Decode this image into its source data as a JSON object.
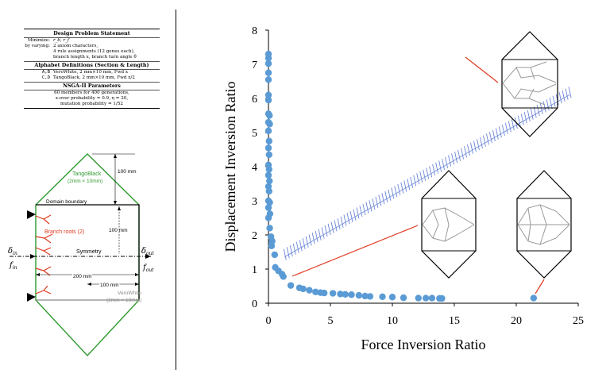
{
  "table": {
    "design_problem": {
      "title": "Design Problem Statement",
      "minimize_key": "Minimize:",
      "minimize_val": "r_δ, r_f",
      "varying_key": "by varying:",
      "varying_lines": [
        "2 axiom characters,",
        "4 rule assignments (12 genes each),",
        "branch length x, branch turn angle θ"
      ]
    },
    "alphabet": {
      "title": "Alphabet Definitions (Section & Length)",
      "rows": [
        {
          "key": "A,B",
          "val": "VeroWhite, 2 mm×10 mm, Fwd x"
        },
        {
          "key": "C,D",
          "val": "TangoBlack, 2 mm×10 mm, Fwd x/2"
        }
      ]
    },
    "nsga": {
      "title": "NSGA-II Parameters",
      "lines": [
        "60 members for 400 generations,",
        "x-over probability = 0.9, η = 20,",
        "mutation probability = 1/52"
      ]
    }
  },
  "schematic": {
    "tango_label_1": "TangoBlack",
    "tango_label_2": "(2mm × 10mm)",
    "dim_100_top": "100 mm",
    "domain_boundary": "Domain boundary",
    "dim_100_mid": "100 mm",
    "branch_roots": "Branch roots (2)",
    "delta_in": "δ",
    "delta_in_sub": "in",
    "f_in": "f",
    "f_in_sub": "in",
    "symmetry": "Symmetry",
    "delta_out": "δ",
    "delta_out_sub": "out",
    "f_out": "f",
    "f_out_sub": "out",
    "dim_200": "200 mm",
    "dim_100_bottom": "100 mm",
    "vero_label_1": "VeroWhite",
    "vero_label_2": "(2mm × 10mm)",
    "colors": {
      "tango": "#2e9a2e",
      "red": "#e03a20",
      "gray": "#8a8a8a"
    }
  },
  "chart_data": {
    "type": "scatter",
    "xlabel": "Force  Inversion  Ratio",
    "ylabel": "Displacement  Inversion  Ratio",
    "xlim": [
      0,
      25
    ],
    "ylim": [
      0,
      8
    ],
    "xticks": [
      0,
      5,
      10,
      15,
      20,
      25
    ],
    "yticks": [
      0,
      1,
      2,
      3,
      4,
      5,
      6,
      7,
      8
    ],
    "grid": false,
    "marker_color": "#5b9bd5",
    "hatch_color": "#6a86d8",
    "points": [
      [
        0.0,
        7.3
      ],
      [
        0.0,
        7.18
      ],
      [
        0.0,
        7.02
      ],
      [
        0.0,
        6.75
      ],
      [
        0.0,
        6.55
      ],
      [
        0.0,
        6.1
      ],
      [
        0.0,
        5.95
      ],
      [
        0.0,
        5.55
      ],
      [
        0.08,
        5.5
      ],
      [
        0.0,
        5.3
      ],
      [
        0.1,
        5.25
      ],
      [
        0.0,
        5.05
      ],
      [
        0.05,
        4.75
      ],
      [
        0.0,
        4.55
      ],
      [
        0.05,
        4.35
      ],
      [
        0.0,
        4.05
      ],
      [
        0.05,
        3.92
      ],
      [
        0.0,
        3.75
      ],
      [
        0.08,
        3.58
      ],
      [
        0.0,
        3.42
      ],
      [
        0.05,
        3.28
      ],
      [
        0.0,
        3.0
      ],
      [
        0.1,
        2.95
      ],
      [
        0.0,
        2.8
      ],
      [
        0.12,
        2.62
      ],
      [
        0.0,
        2.5
      ],
      [
        0.1,
        2.2
      ],
      [
        0.2,
        1.95
      ],
      [
        0.3,
        1.82
      ],
      [
        0.25,
        1.68
      ],
      [
        0.5,
        1.42
      ],
      [
        0.55,
        1.05
      ],
      [
        0.8,
        0.95
      ],
      [
        1.1,
        0.85
      ],
      [
        1.2,
        0.78
      ],
      [
        1.8,
        0.52
      ],
      [
        2.5,
        0.45
      ],
      [
        2.8,
        0.42
      ],
      [
        3.3,
        0.38
      ],
      [
        3.8,
        0.33
      ],
      [
        4.2,
        0.31
      ],
      [
        4.5,
        0.3
      ],
      [
        5.2,
        0.29
      ],
      [
        5.8,
        0.27
      ],
      [
        6.2,
        0.26
      ],
      [
        6.7,
        0.25
      ],
      [
        7.3,
        0.23
      ],
      [
        7.8,
        0.21
      ],
      [
        8.2,
        0.2
      ],
      [
        9.2,
        0.19
      ],
      [
        10.0,
        0.18
      ],
      [
        10.9,
        0.16
      ],
      [
        12.1,
        0.15
      ],
      [
        12.7,
        0.15
      ],
      [
        13.2,
        0.15
      ],
      [
        13.8,
        0.14
      ],
      [
        14.0,
        0.14
      ],
      [
        21.4,
        0.15
      ]
    ],
    "hatch_band": {
      "start": [
        1.3,
        1.45
      ],
      "end": [
        24.3,
        6.2
      ]
    }
  }
}
